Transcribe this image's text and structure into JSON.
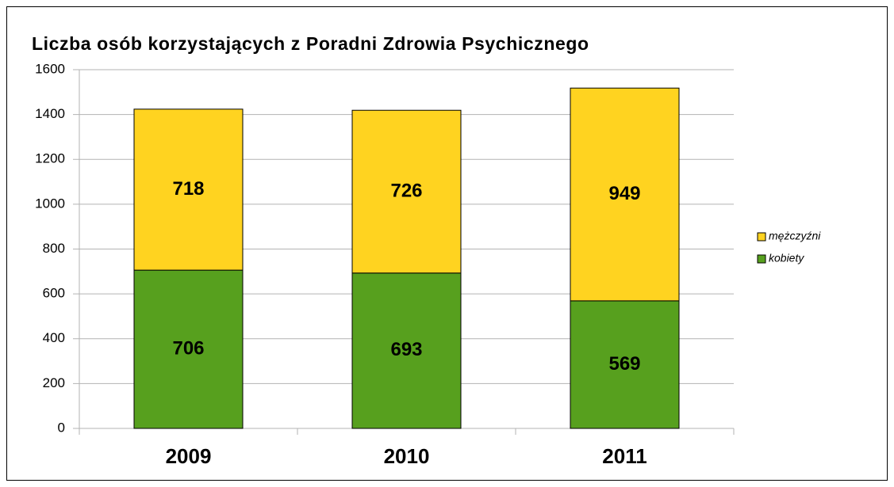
{
  "chart_data": {
    "type": "stacked_bar",
    "title": "Liczba osób korzystających z Poradni Zdrowia Psychicznego",
    "categories": [
      "2009",
      "2010",
      "2011"
    ],
    "series": [
      {
        "name": "kobiety",
        "color": "#57a01e",
        "values": [
          706,
          693,
          569
        ]
      },
      {
        "name": "mężczyźni",
        "color": "#ffd320",
        "values": [
          718,
          726,
          949
        ]
      }
    ],
    "ylim": [
      0,
      1600
    ],
    "yticks": [
      0,
      200,
      400,
      600,
      800,
      1000,
      1200,
      1400,
      1600
    ],
    "grid": true,
    "legend": "right"
  }
}
